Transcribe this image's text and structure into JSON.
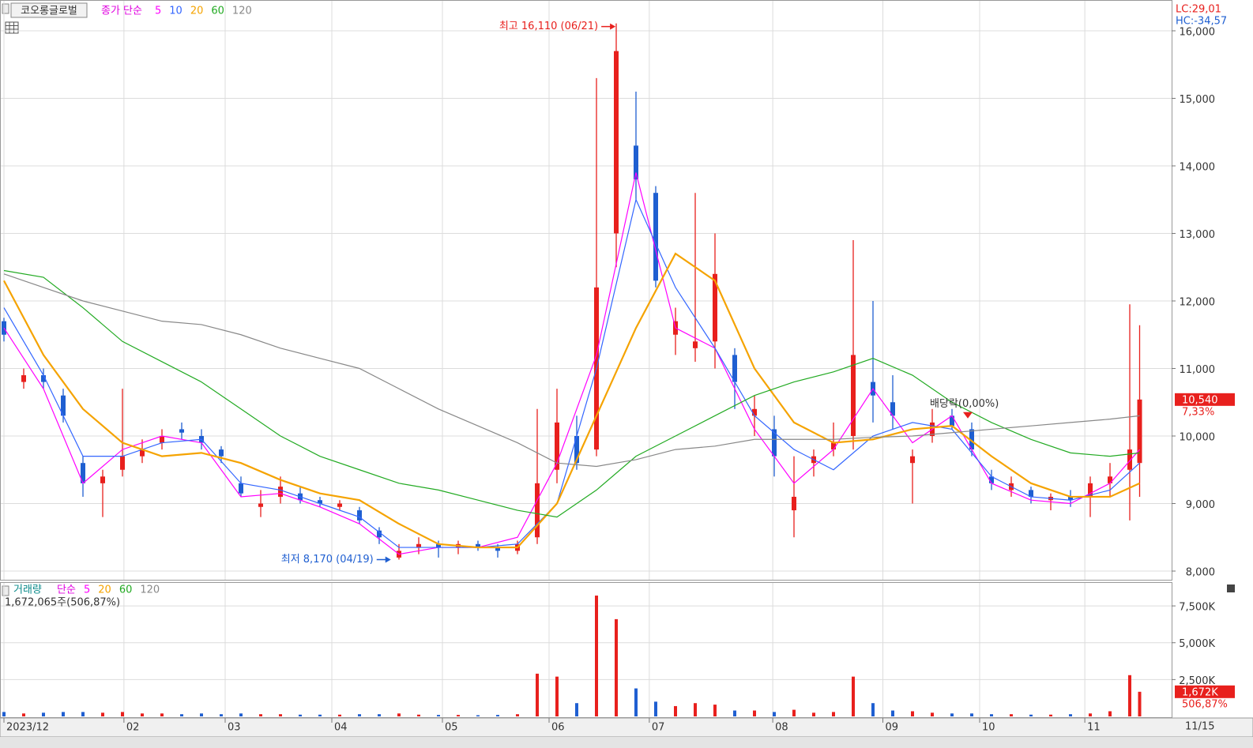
{
  "header": {
    "name": "코오롱글로벌",
    "lc": "LC:29,01",
    "hc": "HC:-34,57",
    "date_end": "11/15"
  },
  "chart_data": [
    {
      "type": "candlestick",
      "legend_title": "종가 단순",
      "up_color": "#e8201d",
      "down_color": "#1f5fd1",
      "x": [
        0,
        4,
        8,
        12,
        16,
        20,
        24,
        28,
        32,
        36,
        40,
        44,
        48,
        52,
        56,
        60,
        64,
        68,
        72,
        76,
        80,
        84,
        88,
        92,
        96,
        100,
        104,
        108,
        112,
        116,
        120,
        124,
        128,
        132,
        136,
        140,
        144,
        148,
        152,
        156,
        160,
        164,
        168,
        172,
        176,
        180,
        184,
        188,
        192,
        196,
        200,
        204,
        208,
        212,
        216,
        220,
        224,
        228,
        230
      ],
      "open": [
        11700,
        10800,
        10900,
        10600,
        9600,
        9300,
        9500,
        9700,
        9900,
        10100,
        10000,
        9800,
        9300,
        8950,
        9100,
        9150,
        9050,
        8950,
        8900,
        8600,
        8200,
        8350,
        8400,
        8350,
        8400,
        8350,
        8300,
        8500,
        9500,
        10000,
        9800,
        13000,
        14300,
        13600,
        11500,
        11300,
        11400,
        11200,
        10300,
        10100,
        8900,
        9600,
        9800,
        10000,
        10800,
        10500,
        9600,
        10000,
        10300,
        10100,
        9400,
        9200,
        9200,
        9050,
        9100,
        9100,
        9300,
        9500,
        9600
      ],
      "high": [
        11750,
        11000,
        11000,
        10700,
        9700,
        9500,
        10700,
        9950,
        10100,
        10200,
        10100,
        9850,
        9400,
        9200,
        9400,
        9250,
        9100,
        9050,
        8950,
        8650,
        8400,
        8500,
        8450,
        8450,
        8450,
        8400,
        8450,
        10400,
        10700,
        10300,
        15300,
        16110,
        15100,
        13700,
        11900,
        13600,
        13000,
        11300,
        10600,
        10300,
        9700,
        9800,
        10200,
        12900,
        12000,
        10900,
        9800,
        10400,
        10400,
        10200,
        9500,
        9400,
        9250,
        9150,
        9200,
        9400,
        9600,
        11950,
        11640
      ],
      "low": [
        11400,
        10700,
        10700,
        10200,
        9100,
        8800,
        9400,
        9600,
        9800,
        9950,
        9800,
        9600,
        9100,
        8800,
        9000,
        9000,
        8950,
        8900,
        8700,
        8400,
        8170,
        8250,
        8200,
        8250,
        8300,
        8200,
        8250,
        8400,
        9300,
        9500,
        9700,
        12500,
        13500,
        12200,
        11200,
        11100,
        11000,
        10400,
        10000,
        9400,
        8500,
        9400,
        9700,
        9800,
        10200,
        10100,
        9000,
        9900,
        10100,
        9700,
        9200,
        9100,
        9000,
        8900,
        8950,
        8800,
        9100,
        8750,
        9100
      ],
      "close": [
        11500,
        10900,
        10800,
        10300,
        9300,
        9400,
        9700,
        9800,
        10000,
        10050,
        9900,
        9700,
        9150,
        9000,
        9250,
        9050,
        9000,
        9000,
        8750,
        8500,
        8300,
        8400,
        8350,
        8400,
        8350,
        8300,
        8400,
        9300,
        10200,
        9600,
        12200,
        15700,
        13800,
        12300,
        11700,
        11400,
        12400,
        10800,
        10400,
        9700,
        9100,
        9700,
        9900,
        11200,
        10600,
        10300,
        9700,
        10200,
        10150,
        9800,
        9300,
        9300,
        9100,
        9100,
        9050,
        9300,
        9400,
        9800,
        10540
      ],
      "series": [
        {
          "name": "5",
          "color": "#ff00ff",
          "x": [
            0,
            8,
            16,
            24,
            32,
            40,
            48,
            56,
            64,
            72,
            80,
            88,
            96,
            104,
            112,
            120,
            128,
            136,
            144,
            152,
            160,
            168,
            176,
            184,
            192,
            200,
            208,
            216,
            224,
            230
          ],
          "values": [
            11600,
            10700,
            9300,
            9800,
            10000,
            9900,
            9100,
            9150,
            8950,
            8700,
            8250,
            8350,
            8350,
            8500,
            9600,
            11200,
            13900,
            11600,
            11300,
            10100,
            9300,
            9800,
            10700,
            9900,
            10300,
            9300,
            9050,
            9000,
            9300,
            9800
          ]
        },
        {
          "name": "10",
          "color": "#3366ff",
          "x": [
            0,
            8,
            16,
            24,
            32,
            40,
            48,
            56,
            64,
            72,
            80,
            88,
            96,
            104,
            112,
            120,
            128,
            136,
            144,
            152,
            160,
            168,
            176,
            184,
            192,
            200,
            208,
            216,
            224,
            230
          ],
          "values": [
            11900,
            10900,
            9700,
            9700,
            9900,
            9950,
            9300,
            9200,
            9000,
            8800,
            8350,
            8350,
            8350,
            8400,
            9000,
            11000,
            13500,
            12200,
            11300,
            10300,
            9800,
            9500,
            10000,
            10200,
            10100,
            9400,
            9100,
            9050,
            9200,
            9600
          ]
        },
        {
          "name": "20",
          "color": "#f5a300",
          "x": [
            0,
            8,
            16,
            24,
            32,
            40,
            48,
            56,
            64,
            72,
            80,
            88,
            96,
            104,
            112,
            120,
            128,
            136,
            144,
            152,
            160,
            168,
            176,
            184,
            192,
            200,
            208,
            216,
            224,
            230
          ],
          "values": [
            12300,
            11200,
            10400,
            9900,
            9700,
            9750,
            9600,
            9350,
            9150,
            9050,
            8700,
            8400,
            8350,
            8350,
            9000,
            10300,
            11600,
            12700,
            12300,
            11000,
            10200,
            9900,
            9950,
            10100,
            10150,
            9700,
            9300,
            9100,
            9100,
            9300
          ]
        },
        {
          "name": "60",
          "color": "#22aa22",
          "x": [
            0,
            8,
            16,
            24,
            32,
            40,
            48,
            56,
            64,
            72,
            80,
            88,
            96,
            104,
            112,
            120,
            128,
            136,
            144,
            152,
            160,
            168,
            176,
            184,
            192,
            200,
            208,
            216,
            224,
            230
          ],
          "values": [
            12450,
            12350,
            11900,
            11400,
            11100,
            10800,
            10400,
            10000,
            9700,
            9500,
            9300,
            9200,
            9050,
            8900,
            8800,
            9200,
            9700,
            10000,
            10300,
            10600,
            10800,
            10950,
            11150,
            10900,
            10500,
            10200,
            9950,
            9750,
            9700,
            9750
          ]
        },
        {
          "name": "120",
          "color": "#888888",
          "x": [
            0,
            8,
            16,
            24,
            32,
            40,
            48,
            56,
            64,
            72,
            80,
            88,
            96,
            104,
            112,
            120,
            128,
            136,
            144,
            152,
            160,
            168,
            176,
            184,
            192,
            200,
            208,
            216,
            224,
            230
          ],
          "values": [
            12400,
            12200,
            12000,
            11850,
            11700,
            11650,
            11500,
            11300,
            11150,
            11000,
            10700,
            10400,
            10150,
            9900,
            9600,
            9550,
            9650,
            9800,
            9850,
            9950,
            9950,
            9950,
            9980,
            10000,
            10050,
            10100,
            10150,
            10200,
            10250,
            10300
          ]
        }
      ],
      "xlim": [
        -0.8,
        236.48
      ],
      "xticks": [
        {
          "value": 0,
          "label": "2023/12"
        },
        {
          "value": 24.3,
          "label": "02"
        },
        {
          "value": 44.8,
          "label": "03"
        },
        {
          "value": 66.4,
          "label": "04"
        },
        {
          "value": 88.8,
          "label": "05"
        },
        {
          "value": 110.4,
          "label": "06"
        },
        {
          "value": 130.7,
          "label": "07"
        },
        {
          "value": 155.7,
          "label": "08"
        },
        {
          "value": 178,
          "label": "09"
        },
        {
          "value": 197.6,
          "label": "10"
        },
        {
          "value": 218.9,
          "label": "11"
        }
      ],
      "ylim": [
        7883,
        16421
      ],
      "yticks": [
        {
          "value": 8000,
          "label": "8,000"
        },
        {
          "value": 9000,
          "label": "9,000"
        },
        {
          "value": 10000,
          "label": "10,000"
        },
        {
          "value": 11000,
          "label": "11,000"
        },
        {
          "value": 12000,
          "label": "12,000"
        },
        {
          "value": 13000,
          "label": "13,000"
        },
        {
          "value": 14000,
          "label": "14,000"
        },
        {
          "value": 15000,
          "label": "15,000"
        },
        {
          "value": 16000,
          "label": "16,000"
        }
      ],
      "annotations": [
        {
          "text": "최고 16,110 (06/21)",
          "x": 124.5,
          "y": 16110,
          "color": "#e8201d"
        },
        {
          "text": "최저 8,170 (04/19)",
          "x": 79,
          "y": 8170,
          "color": "#1f5fd1"
        },
        {
          "text": "배당락(0,00%)",
          "x": 195.2,
          "y": 10120,
          "color": "#333333"
        }
      ],
      "current": {
        "value": 10540,
        "label": "10,540",
        "change": "7,33%"
      }
    },
    {
      "type": "bar",
      "title": "거래량",
      "legend_title": "단순",
      "summary": "1,672,065주(506,87%)",
      "ma_legend": [
        {
          "name": "5",
          "color": "#ff00ff"
        },
        {
          "name": "20",
          "color": "#f5a300"
        },
        {
          "name": "60",
          "color": "#22aa22"
        },
        {
          "name": "120",
          "color": "#888888"
        }
      ],
      "values": [
        300,
        200,
        250,
        300,
        300,
        250,
        300,
        200,
        200,
        150,
        200,
        150,
        200,
        150,
        150,
        120,
        120,
        120,
        150,
        150,
        200,
        120,
        100,
        100,
        80,
        100,
        150,
        2900,
        2700,
        900,
        8200,
        6600,
        1900,
        1000,
        700,
        900,
        800,
        400,
        400,
        300,
        450,
        250,
        300,
        2700,
        900,
        400,
        350,
        250,
        200,
        200,
        150,
        150,
        120,
        120,
        150,
        200,
        350,
        2800,
        1672
      ],
      "ylim": [
        0,
        9060
      ],
      "yticks": [
        {
          "value": 2500,
          "label": "2,500K"
        },
        {
          "value": 5000,
          "label": "5,000K"
        },
        {
          "value": 7500,
          "label": "7,500K"
        }
      ],
      "current": {
        "value": 1672,
        "label": "1,672K",
        "change": "506,87%"
      }
    }
  ]
}
